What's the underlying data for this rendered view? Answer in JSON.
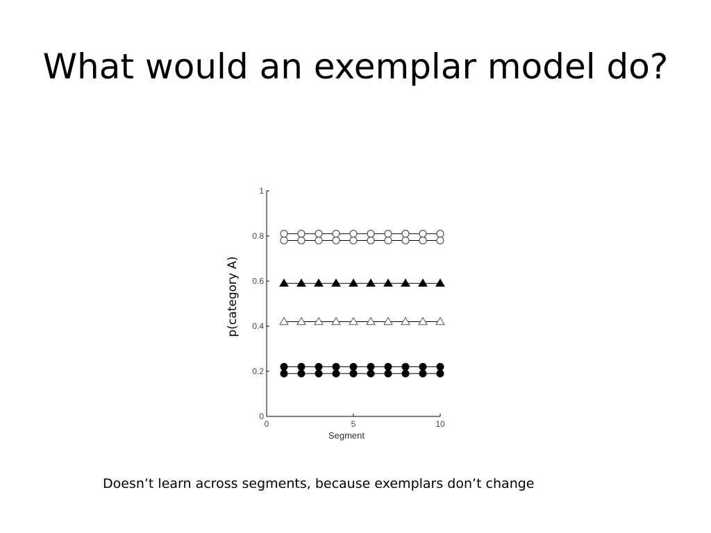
{
  "slide": {
    "title": "What would an exemplar model do?",
    "caption": "Doesn’t learn across segments, because exemplars don’t change"
  },
  "chart_data": {
    "type": "line",
    "xlabel": "Segment",
    "ylabel": "p(category A)",
    "xlim": [
      0,
      10
    ],
    "ylim": [
      0,
      1
    ],
    "xticks": [
      0,
      5,
      10
    ],
    "yticks": [
      0,
      0.2,
      0.4,
      0.6,
      0.8,
      1
    ],
    "ytick_labels": [
      "0",
      "0.2",
      "0.4",
      "0.6",
      "0.8",
      "1"
    ],
    "xtick_labels": [
      "0",
      "5",
      "10"
    ],
    "x": [
      1,
      2,
      3,
      4,
      5,
      6,
      7,
      8,
      9,
      10
    ],
    "grid": false,
    "series": [
      {
        "marker": "open-circle",
        "values": [
          0.81,
          0.81,
          0.81,
          0.81,
          0.81,
          0.81,
          0.81,
          0.81,
          0.81,
          0.81
        ]
      },
      {
        "marker": "open-circle",
        "values": [
          0.78,
          0.78,
          0.78,
          0.78,
          0.78,
          0.78,
          0.78,
          0.78,
          0.78,
          0.78
        ]
      },
      {
        "marker": "filled-triangle",
        "values": [
          0.59,
          0.59,
          0.59,
          0.59,
          0.59,
          0.59,
          0.59,
          0.59,
          0.59,
          0.59
        ]
      },
      {
        "marker": "open-triangle",
        "values": [
          0.42,
          0.42,
          0.42,
          0.42,
          0.42,
          0.42,
          0.42,
          0.42,
          0.42,
          0.42
        ]
      },
      {
        "marker": "filled-circle",
        "values": [
          0.22,
          0.22,
          0.22,
          0.22,
          0.22,
          0.22,
          0.22,
          0.22,
          0.22,
          0.22
        ]
      },
      {
        "marker": "filled-circle",
        "values": [
          0.19,
          0.19,
          0.19,
          0.19,
          0.19,
          0.19,
          0.19,
          0.19,
          0.19,
          0.19
        ]
      }
    ],
    "colors": {
      "line": "#000000",
      "open_fill": "#ffffff",
      "open_stroke": "#555555",
      "filled": "#000000"
    }
  }
}
